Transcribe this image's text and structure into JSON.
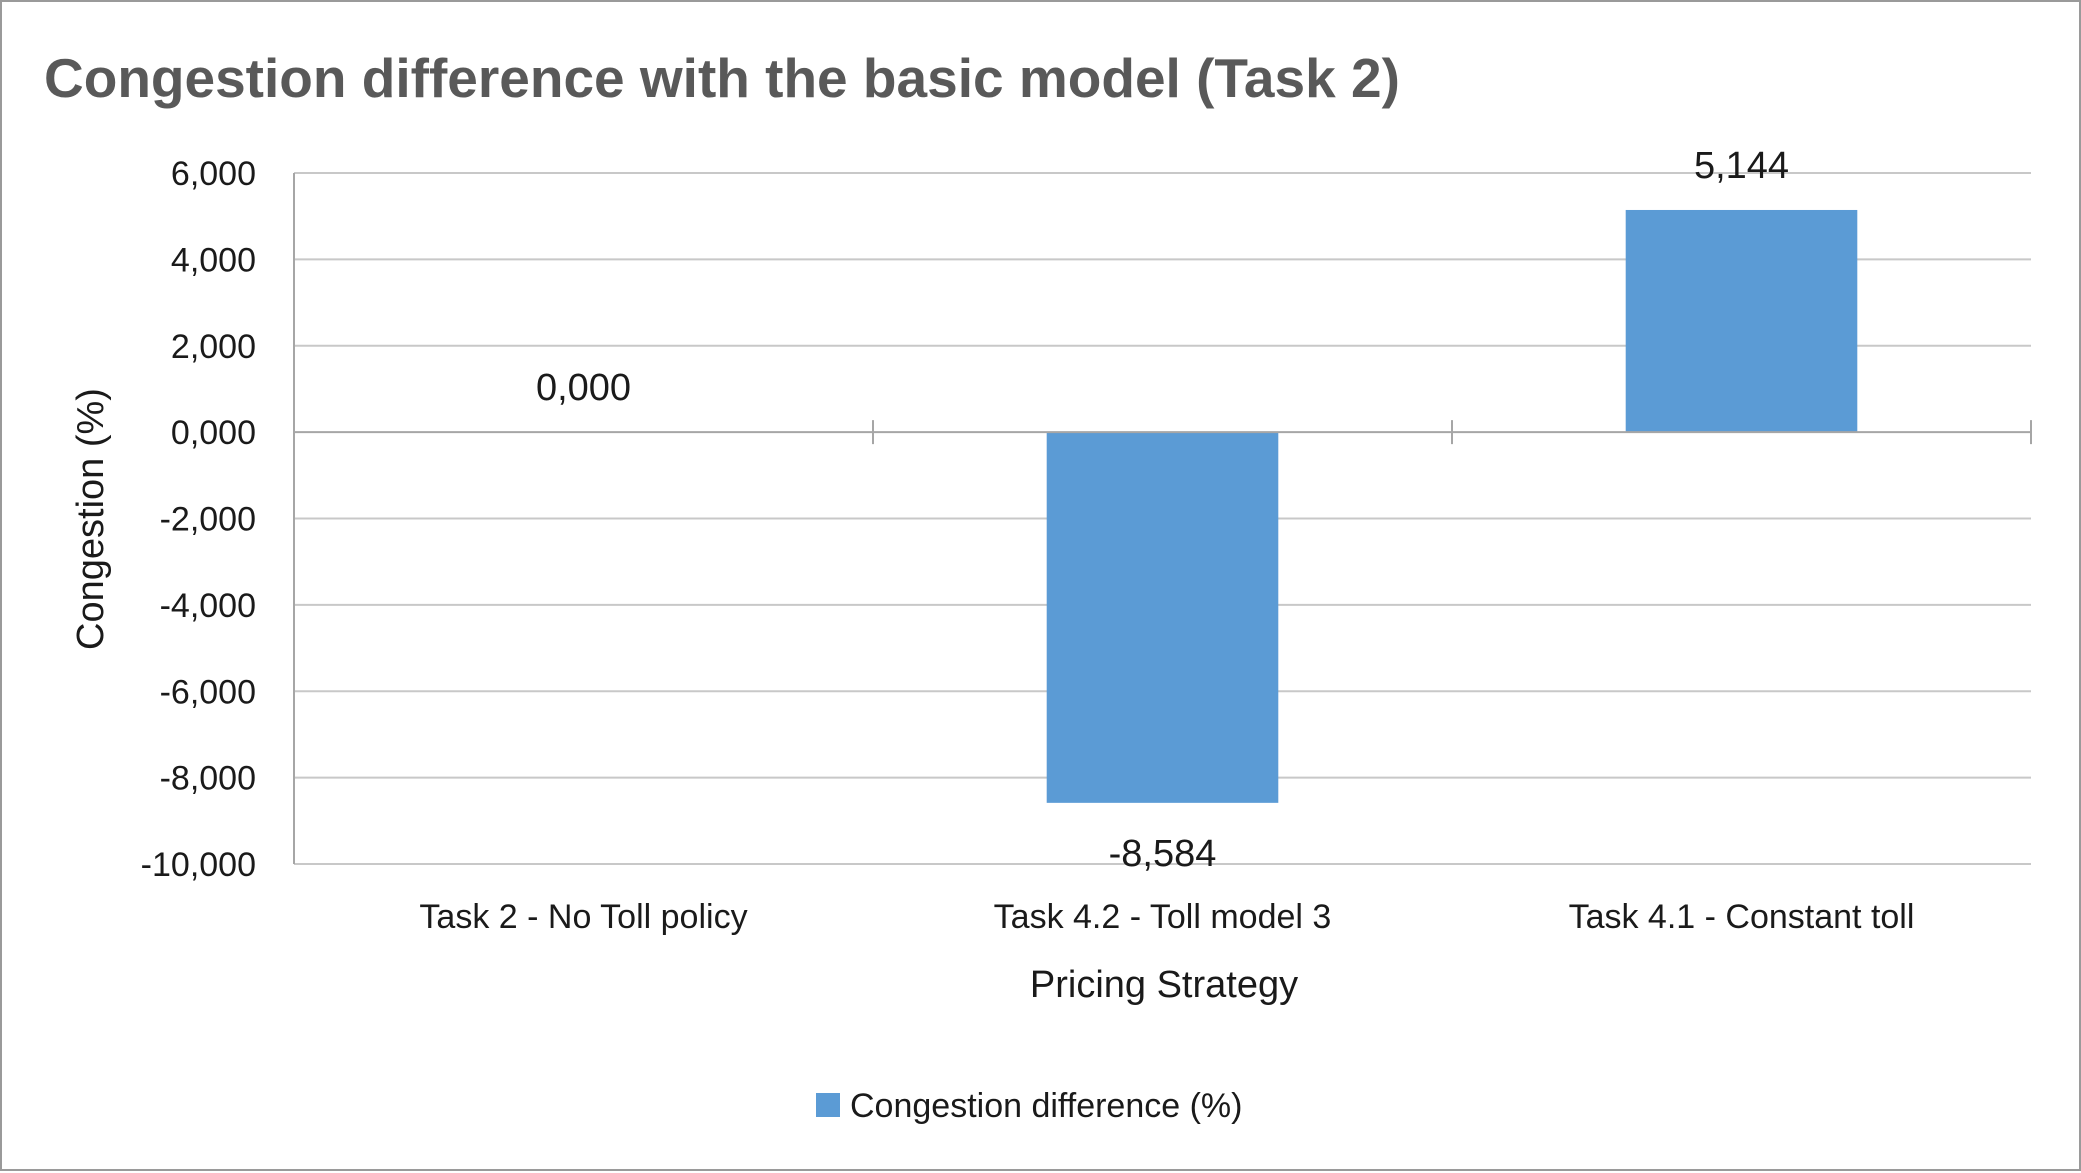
{
  "chart_data": {
    "type": "bar",
    "title": "Congestion difference with the basic model (Task 2)",
    "xlabel": "Pricing Strategy",
    "ylabel": "Congestion (%)",
    "categories": [
      "Task 2 - No Toll policy",
      "Task 4.2 - Toll model 3",
      "Task 4.1 - Constant toll"
    ],
    "series": [
      {
        "name": "Congestion difference (%)",
        "values": [
          0.0,
          -8.584,
          5.144
        ],
        "labels": [
          "0,000",
          "-8,584",
          "5,144"
        ],
        "color": "#5b9bd5"
      }
    ],
    "ylim": [
      -10,
      6
    ],
    "yticks": [
      6,
      4,
      2,
      0,
      -2,
      -4,
      -6,
      -8,
      -10
    ],
    "ytick_labels": [
      "6,000",
      "4,000",
      "2,000",
      "0,000",
      "-2,000",
      "-4,000",
      "-6,000",
      "-8,000",
      "-10,000"
    ],
    "grid": true,
    "legend_position": "bottom",
    "colors": {
      "bar": "#5b9bd5",
      "grid": "#c8c8c8",
      "axis": "#a6a6a6",
      "title": "#595959",
      "text": "#1a1a1a",
      "border": "#9a9a9a"
    }
  }
}
